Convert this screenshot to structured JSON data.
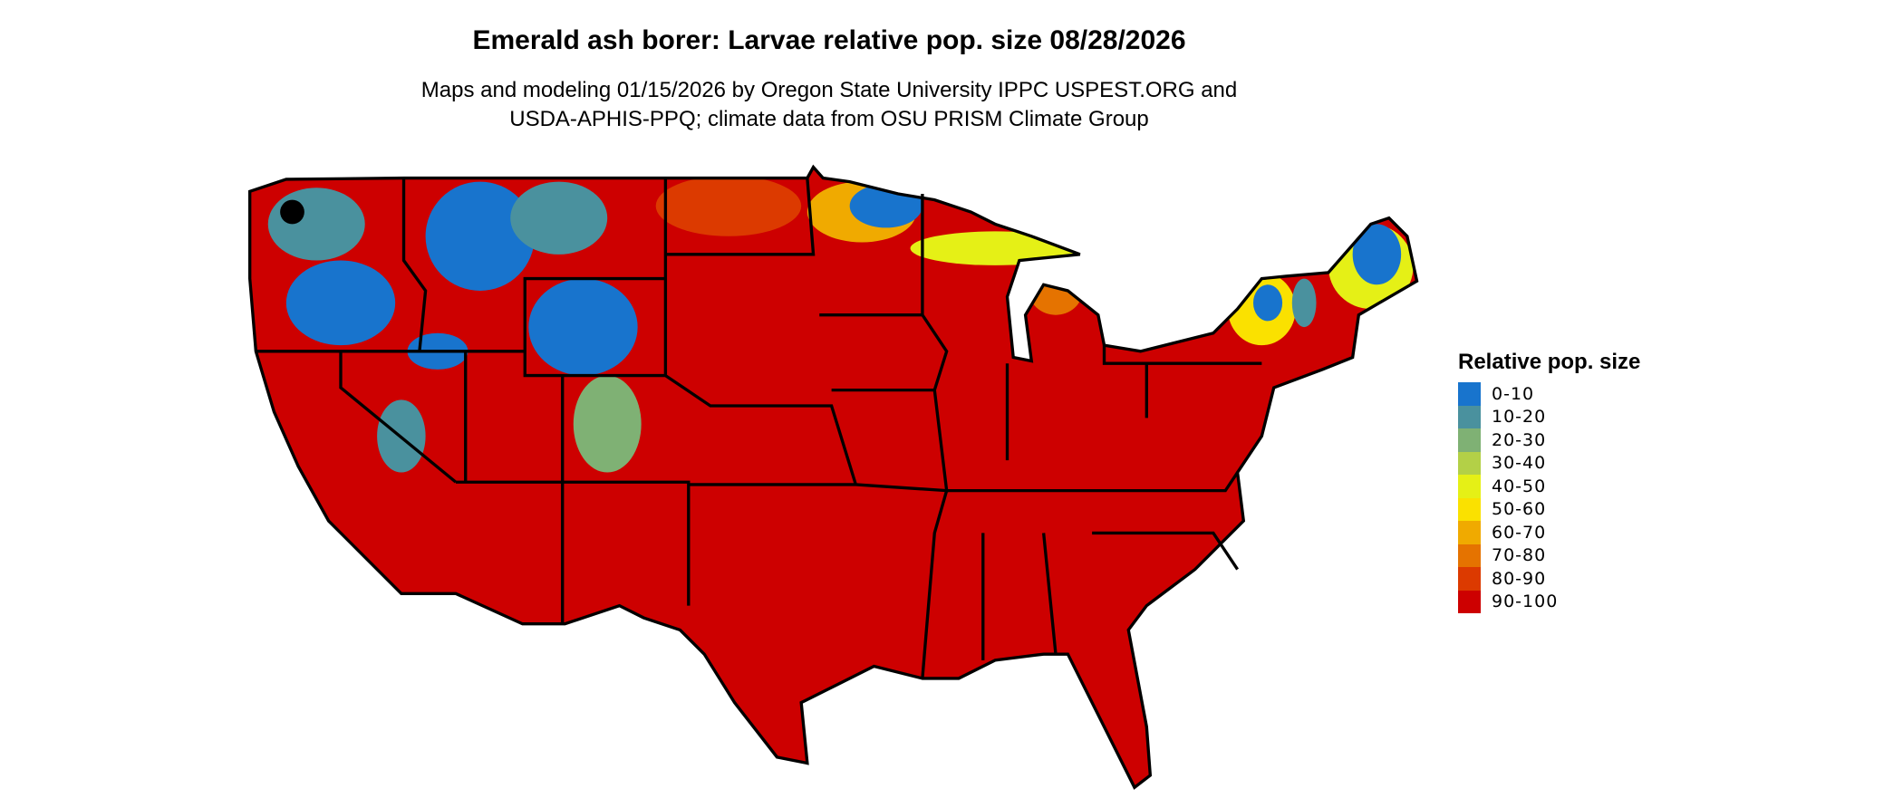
{
  "title": "Emerald ash borer: Larvae relative pop. size 08/28/2026",
  "subtitle_line1": "Maps and modeling 01/15/2026 by Oregon State University IPPC USPEST.ORG and",
  "subtitle_line2": "USDA-APHIS-PPQ; climate data from OSU PRISM Climate Group",
  "legend": {
    "title": "Relative pop. size",
    "items": [
      {
        "label": "0-10",
        "color": "#1874CD"
      },
      {
        "label": "10-20",
        "color": "#4A919E"
      },
      {
        "label": "20-30",
        "color": "#7FB174"
      },
      {
        "label": "30-40",
        "color": "#B3D047"
      },
      {
        "label": "40-50",
        "color": "#E5F016"
      },
      {
        "label": "50-60",
        "color": "#FAE100"
      },
      {
        "label": "60-70",
        "color": "#F0AA00"
      },
      {
        "label": "70-80",
        "color": "#E57300"
      },
      {
        "label": "80-90",
        "color": "#DC3A00"
      },
      {
        "label": "90-100",
        "color": "#CD0000"
      }
    ]
  }
}
